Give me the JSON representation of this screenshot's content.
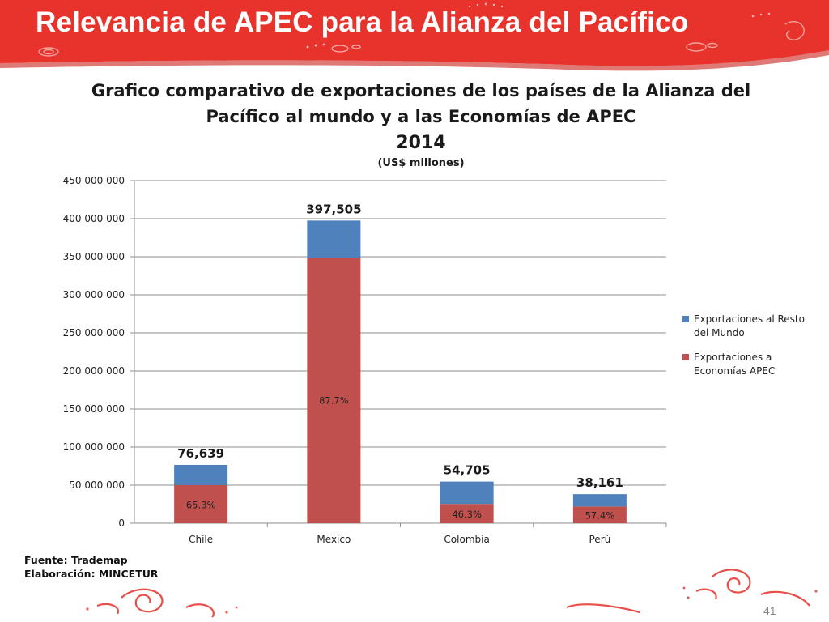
{
  "slide": {
    "title": "Relevancia de APEC para la Alianza del Pacífico",
    "page_number": "41",
    "source_lines": [
      "Fuente: Trademap",
      "Elaboración: MINCETUR"
    ]
  },
  "colors": {
    "banner": "#e8322c",
    "banner_dark": "#c9201b",
    "apec": "#c0504d",
    "rest": "#4f81bd",
    "grid": "#8c8c8c",
    "swirl": "#e5312c"
  },
  "chart_data": {
    "type": "bar",
    "stacked": true,
    "title_lines": [
      "Grafico comparativo de exportaciones de los países de la Alianza del",
      "Pacífico al mundo y a las Economías de APEC",
      "2014",
      "(US$ millones)"
    ],
    "categories": [
      "Chile",
      "Mexico",
      "Colombia",
      "Perú"
    ],
    "series": [
      {
        "name": "Exportaciones a Economías APEC",
        "values": [
          50045,
          348612,
          25328,
          21904
        ],
        "color_key": "apec"
      },
      {
        "name": "Exportaciones al Resto del Mundo",
        "values": [
          26594,
          48893,
          29377,
          16257
        ],
        "color_key": "rest"
      }
    ],
    "total_labels": [
      "76,639",
      "397,505",
      "54,705",
      "38,161"
    ],
    "share_labels": [
      "65.3%",
      "87.7%",
      "46.3%",
      "57.4%"
    ],
    "y_tick_values": [
      0,
      50000,
      100000,
      150000,
      200000,
      250000,
      300000,
      350000,
      400000,
      450000
    ],
    "y_tick_labels": [
      "0",
      "50 000 000",
      "100 000 000",
      "150 000 000",
      "200 000 000",
      "250 000 000",
      "300 000 000",
      "350 000 000",
      "400 000 000",
      "450 000 000"
    ],
    "ylim": [
      0,
      450000
    ],
    "grid": true,
    "legend_position": "right",
    "legend_order": [
      "Exportaciones al Resto del Mundo",
      "Exportaciones a Economías APEC"
    ],
    "legend_lines": [
      [
        "Exportaciones al Resto",
        "del Mundo"
      ],
      [
        "Exportaciones a",
        "Economías APEC"
      ]
    ]
  }
}
